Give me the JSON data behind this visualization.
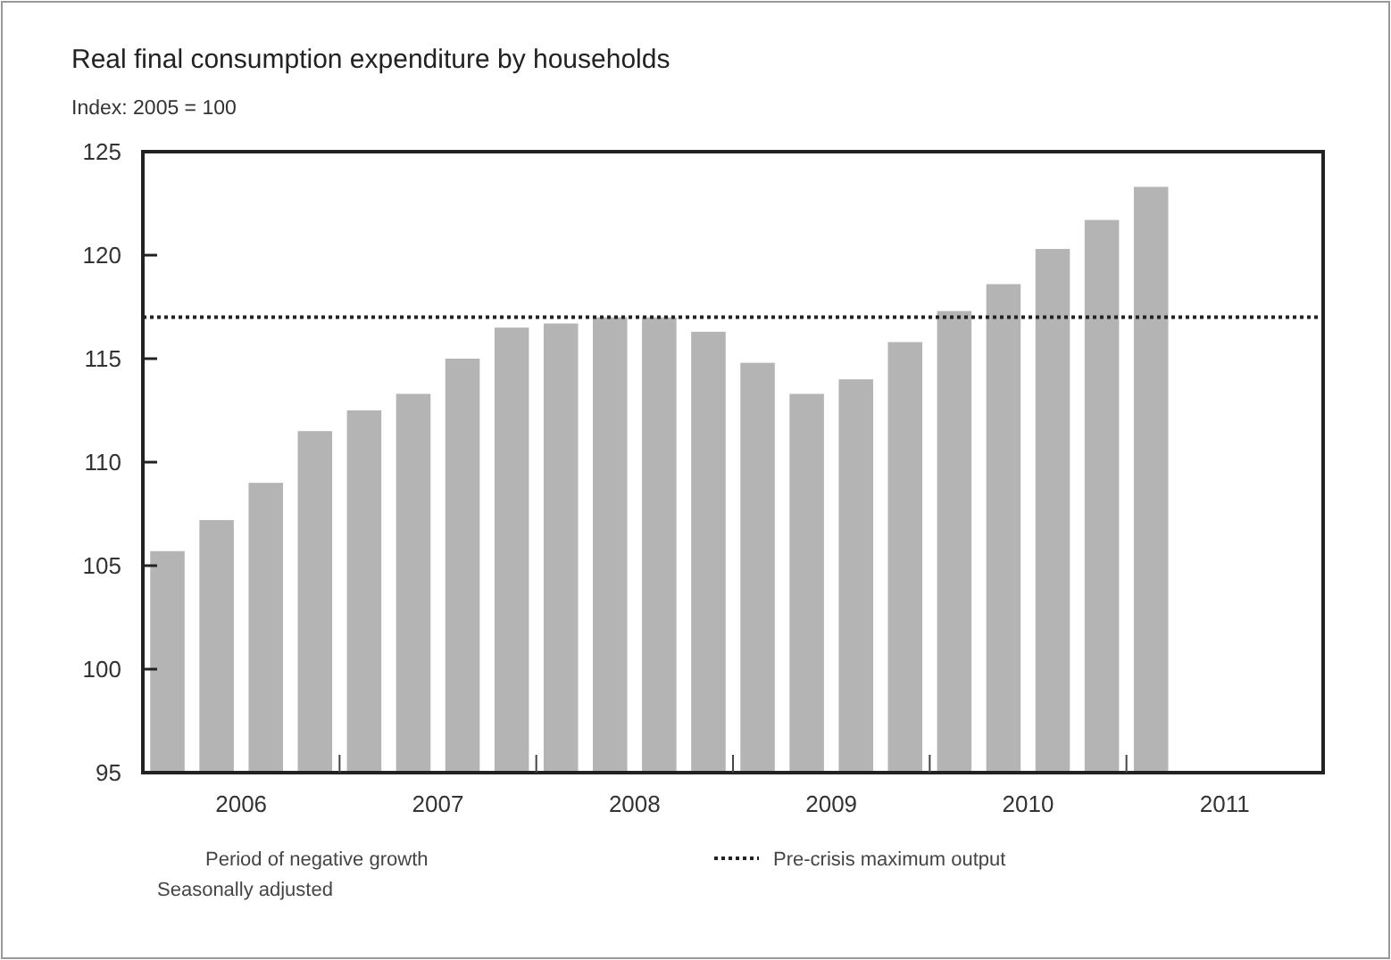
{
  "chart_data": {
    "type": "bar",
    "title": "Real final consumption expenditure by households",
    "subtitle": "Index: 2005 = 100",
    "x": [
      2006.125,
      2006.375,
      2006.625,
      2006.875,
      2007.125,
      2007.375,
      2007.625,
      2007.875,
      2008.125,
      2008.375,
      2008.625,
      2008.875,
      2009.125,
      2009.375,
      2009.625,
      2009.875,
      2010.125,
      2010.375,
      2010.625,
      2010.875,
      2011.125
    ],
    "values": [
      105.7,
      107.2,
      109.0,
      111.5,
      112.5,
      113.3,
      115.0,
      116.5,
      116.7,
      117.0,
      117.0,
      116.3,
      114.8,
      113.3,
      114.0,
      115.8,
      117.3,
      118.6,
      120.3,
      121.7,
      123.3
    ],
    "color": "#b4b4b4",
    "xlim": [
      2006,
      2012
    ],
    "xticks": [
      {
        "value": 2006.5,
        "label": "2006"
      },
      {
        "value": 2007,
        "label": null
      },
      {
        "value": 2007.5,
        "label": "2007"
      },
      {
        "value": 2008,
        "label": null
      },
      {
        "value": 2008.5,
        "label": "2008"
      },
      {
        "value": 2009,
        "label": null
      },
      {
        "value": 2009.5,
        "label": "2009"
      },
      {
        "value": 2010,
        "label": null
      },
      {
        "value": 2010.5,
        "label": "2010"
      },
      {
        "value": 2011,
        "label": null
      },
      {
        "value": 2011.5,
        "label": "2011"
      }
    ],
    "ylim": [
      95,
      125
    ],
    "yticks": [
      95,
      100,
      105,
      110,
      115,
      120,
      125
    ],
    "ref_lines": [
      {
        "axis": "y",
        "value": 117,
        "label": "Pre-crisis maximum output",
        "line_style": "dotted",
        "color": "#222222"
      }
    ],
    "annotations": [
      "Period of negative growth",
      "Seasonally adjusted"
    ],
    "legend": "bottom",
    "grid": false
  }
}
